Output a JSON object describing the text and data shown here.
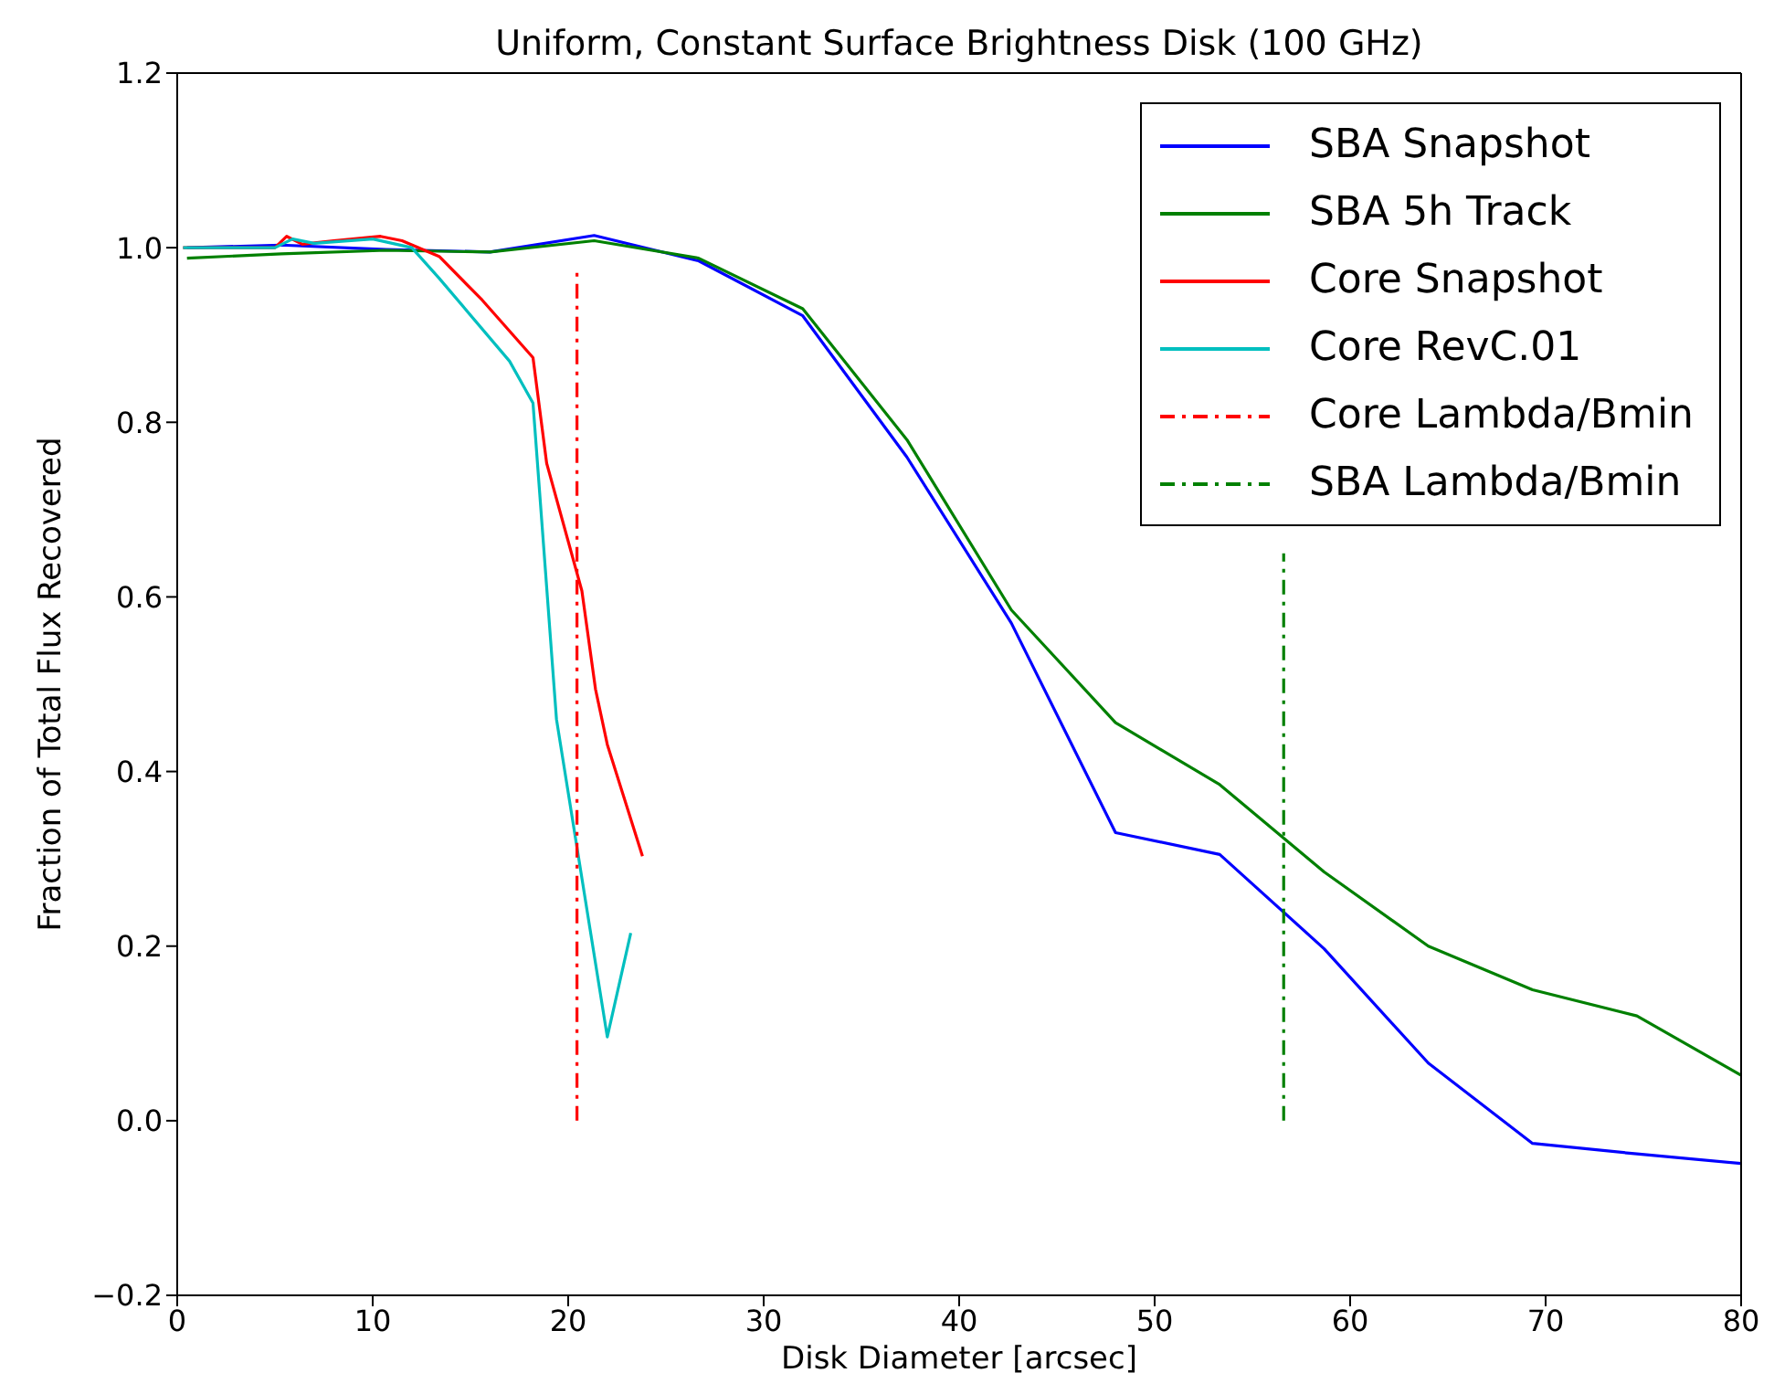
{
  "chart_data": {
    "type": "line",
    "title": "Uniform, Constant Surface Brightness Disk (100 GHz)",
    "xlabel": "Disk Diameter [arcsec]",
    "ylabel": "Fraction of Total Flux Recovered",
    "xlim": [
      0,
      80
    ],
    "xticks": [
      0,
      10,
      20,
      30,
      40,
      50,
      60,
      70,
      80
    ],
    "ylim": [
      -0.2,
      1.2
    ],
    "yticks": [
      {
        "value": -0.2,
        "label": "−0.2"
      },
      {
        "value": 0,
        "label": "0.0"
      },
      0.2,
      0.4,
      0.6,
      0.8,
      {
        "value": 1,
        "label": "1.0"
      },
      1.2
    ],
    "legend": "top right",
    "line_style": "solid",
    "marker": "none",
    "series": [
      {
        "name": "SBA Snapshot",
        "color": "#0000ff",
        "x": [
          0.5,
          5.33,
          10.67,
          16,
          21.33,
          26.67,
          32,
          37.33,
          42.67,
          48,
          53.33,
          58.67,
          64,
          69.33,
          74.67,
          80
        ],
        "values": [
          1.0,
          1.003,
          0.998,
          0.995,
          1.014,
          0.985,
          0.922,
          0.76,
          0.57,
          0.33,
          0.305,
          0.197,
          0.066,
          -0.026,
          -0.038,
          -0.049
        ]
      },
      {
        "name": "SBA 5h Track",
        "color": "#008000",
        "x": [
          0.5,
          5.33,
          10.67,
          16,
          21.33,
          26.67,
          32,
          37.33,
          42.67,
          48,
          53.33,
          58.67,
          64,
          69.33,
          74.67,
          80
        ],
        "values": [
          0.988,
          0.993,
          0.997,
          0.995,
          1.008,
          0.988,
          0.93,
          0.78,
          0.585,
          0.456,
          0.385,
          0.285,
          0.2,
          0.15,
          0.12,
          0.052
        ]
      },
      {
        "name": "Core Snapshot",
        "color": "#ff0000",
        "x": [
          0.3,
          5.0,
          5.6,
          6.4,
          8.0,
          10.4,
          11.5,
          13.4,
          15.6,
          18.2,
          18.9,
          20.7,
          21.4,
          22.0,
          23.8
        ],
        "values": [
          1.0,
          1.0,
          1.013,
          1.004,
          1.008,
          1.013,
          1.008,
          0.99,
          0.94,
          0.874,
          0.753,
          0.607,
          0.494,
          0.431,
          0.303
        ]
      },
      {
        "name": "Core RevC.01",
        "color": "#00bfbf",
        "x": [
          0.3,
          5.0,
          5.9,
          7.0,
          10.0,
          12.0,
          13.4,
          17.0,
          18.2,
          19.4,
          22.0,
          23.2
        ],
        "values": [
          1.0,
          1.0,
          1.01,
          1.005,
          1.01,
          1.0,
          0.965,
          0.87,
          0.822,
          0.46,
          0.096,
          0.215
        ]
      },
      {
        "name": "Core Lambda/Bmin",
        "color": "#ff0000",
        "line_style": "dashed",
        "x": [
          20.45,
          20.45
        ],
        "values": [
          0,
          0.975
        ]
      },
      {
        "name": "SBA Lambda/Bmin",
        "color": "#008000",
        "line_style": "dashed",
        "x": [
          56.6,
          56.6
        ],
        "values": [
          0,
          0.65
        ]
      }
    ]
  }
}
